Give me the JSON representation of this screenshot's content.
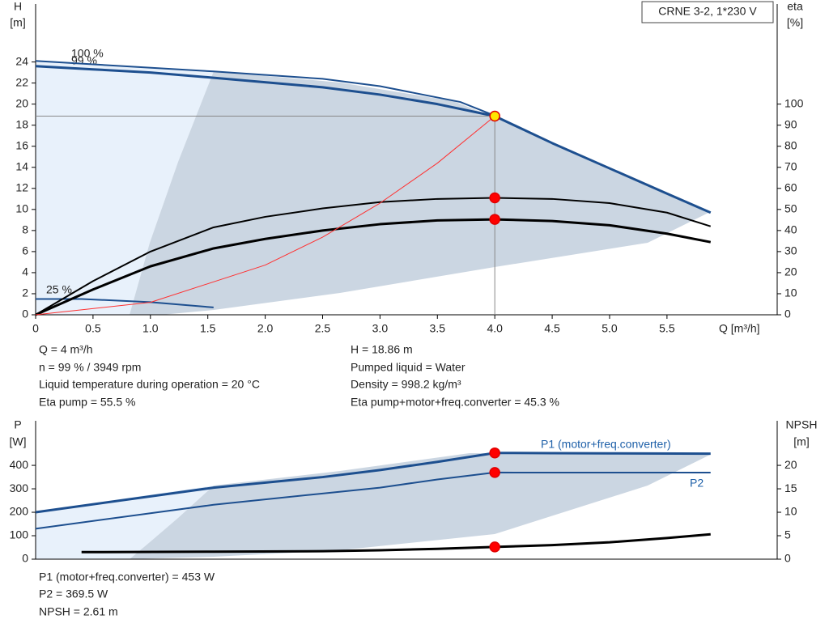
{
  "header": {
    "model": "CRNE 3-2, 1*230 V"
  },
  "chart_data": [
    {
      "type": "line",
      "x_label": "Q [m³/h]",
      "y_label": "H",
      "y_unit": "[m]",
      "y2_label": "eta",
      "y2_unit": "[%]",
      "xlim": [
        0,
        6.46
      ],
      "ylim": [
        0,
        29.5
      ],
      "y2lim": [
        0,
        147.5
      ],
      "xticks": [
        0,
        0.5,
        {
          "value": 1,
          "label": "1.0"
        },
        1.5,
        {
          "value": 2,
          "label": "2.0"
        },
        2.5,
        {
          "value": 3,
          "label": "3.0"
        },
        3.5,
        {
          "value": 4,
          "label": "4.0"
        },
        4.5,
        {
          "value": 5,
          "label": "5.0"
        },
        5.5
      ],
      "yticks": [
        0,
        2,
        4,
        6,
        8,
        10,
        12,
        14,
        16,
        18,
        20,
        22,
        24
      ],
      "y2ticks": [
        0,
        10,
        20,
        30,
        40,
        50,
        60,
        70,
        80,
        90,
        100
      ],
      "annotations": [
        "100 %",
        "99 %",
        "25 %"
      ],
      "series": [
        {
          "color": "#1d4f8f",
          "x": [
            0,
            0.5,
            1.0,
            1.55,
            2.5,
            3.0,
            3.5,
            4.0,
            4.5,
            5.0,
            5.5,
            5.88
          ],
          "values": [
            23.6,
            23.3,
            23.0,
            22.5,
            21.6,
            20.9,
            20.0,
            18.86,
            16.3,
            13.9,
            11.5,
            9.7
          ],
          "line_width": 3
        },
        {
          "color": "#1d4f8f",
          "x": [
            0,
            1.55,
            2.5,
            3.0,
            3.7,
            4.0
          ],
          "values": [
            24.1,
            23.1,
            22.4,
            21.7,
            20.2,
            18.9
          ],
          "line_width": 2
        },
        {
          "color": "#1d4f8f",
          "x": [
            0,
            0.4,
            1.0,
            1.55
          ],
          "values": [
            1.5,
            1.5,
            1.2,
            0.7
          ],
          "line_width": 2
        },
        {
          "color": "#000000",
          "axis": "y2",
          "x": [
            0,
            0.5,
            1.0,
            1.55,
            2.0,
            2.5,
            3.0,
            3.5,
            4.0,
            4.5,
            5.0,
            5.5,
            5.88
          ],
          "values": [
            0,
            16,
            30,
            41.5,
            46.5,
            50.5,
            53.5,
            55,
            55.5,
            55,
            53,
            48.5,
            42
          ],
          "line_width": 2
        },
        {
          "color": "#000000",
          "axis": "y2",
          "x": [
            0,
            0.5,
            1.0,
            1.55,
            2.0,
            2.5,
            3.0,
            3.5,
            4.0,
            4.5,
            5.0,
            5.5,
            5.88
          ],
          "values": [
            0,
            12,
            23,
            31.5,
            36,
            40,
            43,
            44.8,
            45.3,
            44.5,
            42.5,
            38.5,
            34.5
          ],
          "line_width": 3
        },
        {
          "color": "#ff3030",
          "x": [
            0,
            1,
            2,
            2.5,
            3,
            3.5,
            4
          ],
          "values": [
            0,
            1.18,
            4.72,
            7.37,
            10.6,
            14.4,
            18.86
          ],
          "line_width": 1
        }
      ],
      "markers": [
        {
          "x": 4,
          "y": 18.86,
          "color": "#ffe600",
          "guide": true
        },
        {
          "x": 4,
          "y": 55.5,
          "color": "#ff0000",
          "axis": "y2"
        },
        {
          "x": 4,
          "y": 45.3,
          "color": "#ff0000",
          "axis": "y2"
        }
      ],
      "info": [
        "Q = 4 m³/h",
        "n = 99 % / 3949 rpm",
        "Liquid temperature during operation = 20 °C",
        "Eta pump = 55.5 %",
        "H = 18.86 m",
        "Pumped liquid = Water",
        "Density = 998.2 kg/m³",
        "Eta pump+motor+freq.converter = 45.3 %"
      ]
    },
    {
      "type": "line",
      "y_label": "P",
      "y_unit": "[W]",
      "y2_label": "NPSH",
      "y2_unit": "[m]",
      "xlim": [
        0,
        6.46
      ],
      "ylim": [
        0,
        590
      ],
      "y2lim": [
        0,
        29.5
      ],
      "yticks": [
        0,
        100,
        200,
        300,
        400
      ],
      "y2ticks": [
        0,
        5,
        10,
        15,
        20
      ],
      "series": [
        {
          "name": "P1 (motor+freq.converter)",
          "color": "#1d4f8f",
          "x": [
            0,
            1.55,
            2.5,
            3.0,
            3.5,
            4.0,
            4.5,
            5.0,
            5.88
          ],
          "values": [
            200,
            305,
            350,
            380,
            415,
            453,
            452,
            451,
            450
          ],
          "line_width": 3
        },
        {
          "name": "P2",
          "color": "#1d4f8f",
          "x": [
            0,
            1.55,
            2.5,
            3.0,
            3.5,
            4.0,
            4.5,
            5.0,
            5.88
          ],
          "values": [
            130,
            232,
            280,
            305,
            340,
            369.5,
            369,
            369,
            369
          ],
          "line_width": 2
        },
        {
          "color": "#000000",
          "axis": "y2",
          "x": [
            0.4,
            1.55,
            2.5,
            3.0,
            3.5,
            4.0,
            4.5,
            5.0,
            5.5,
            5.88
          ],
          "values": [
            1.5,
            1.6,
            1.7,
            1.9,
            2.2,
            2.61,
            3.0,
            3.6,
            4.5,
            5.3
          ],
          "line_width": 3
        }
      ],
      "markers": [
        {
          "x": 4,
          "y": 453,
          "color": "#ff0000"
        },
        {
          "x": 4,
          "y": 369.5,
          "color": "#ff0000"
        },
        {
          "x": 4,
          "y": 2.61,
          "color": "#ff0000",
          "axis": "y2"
        }
      ],
      "info": [
        "P1 (motor+freq.converter) = 453 W",
        "P2 = 369.5 W",
        "NPSH = 2.61 m"
      ]
    }
  ]
}
